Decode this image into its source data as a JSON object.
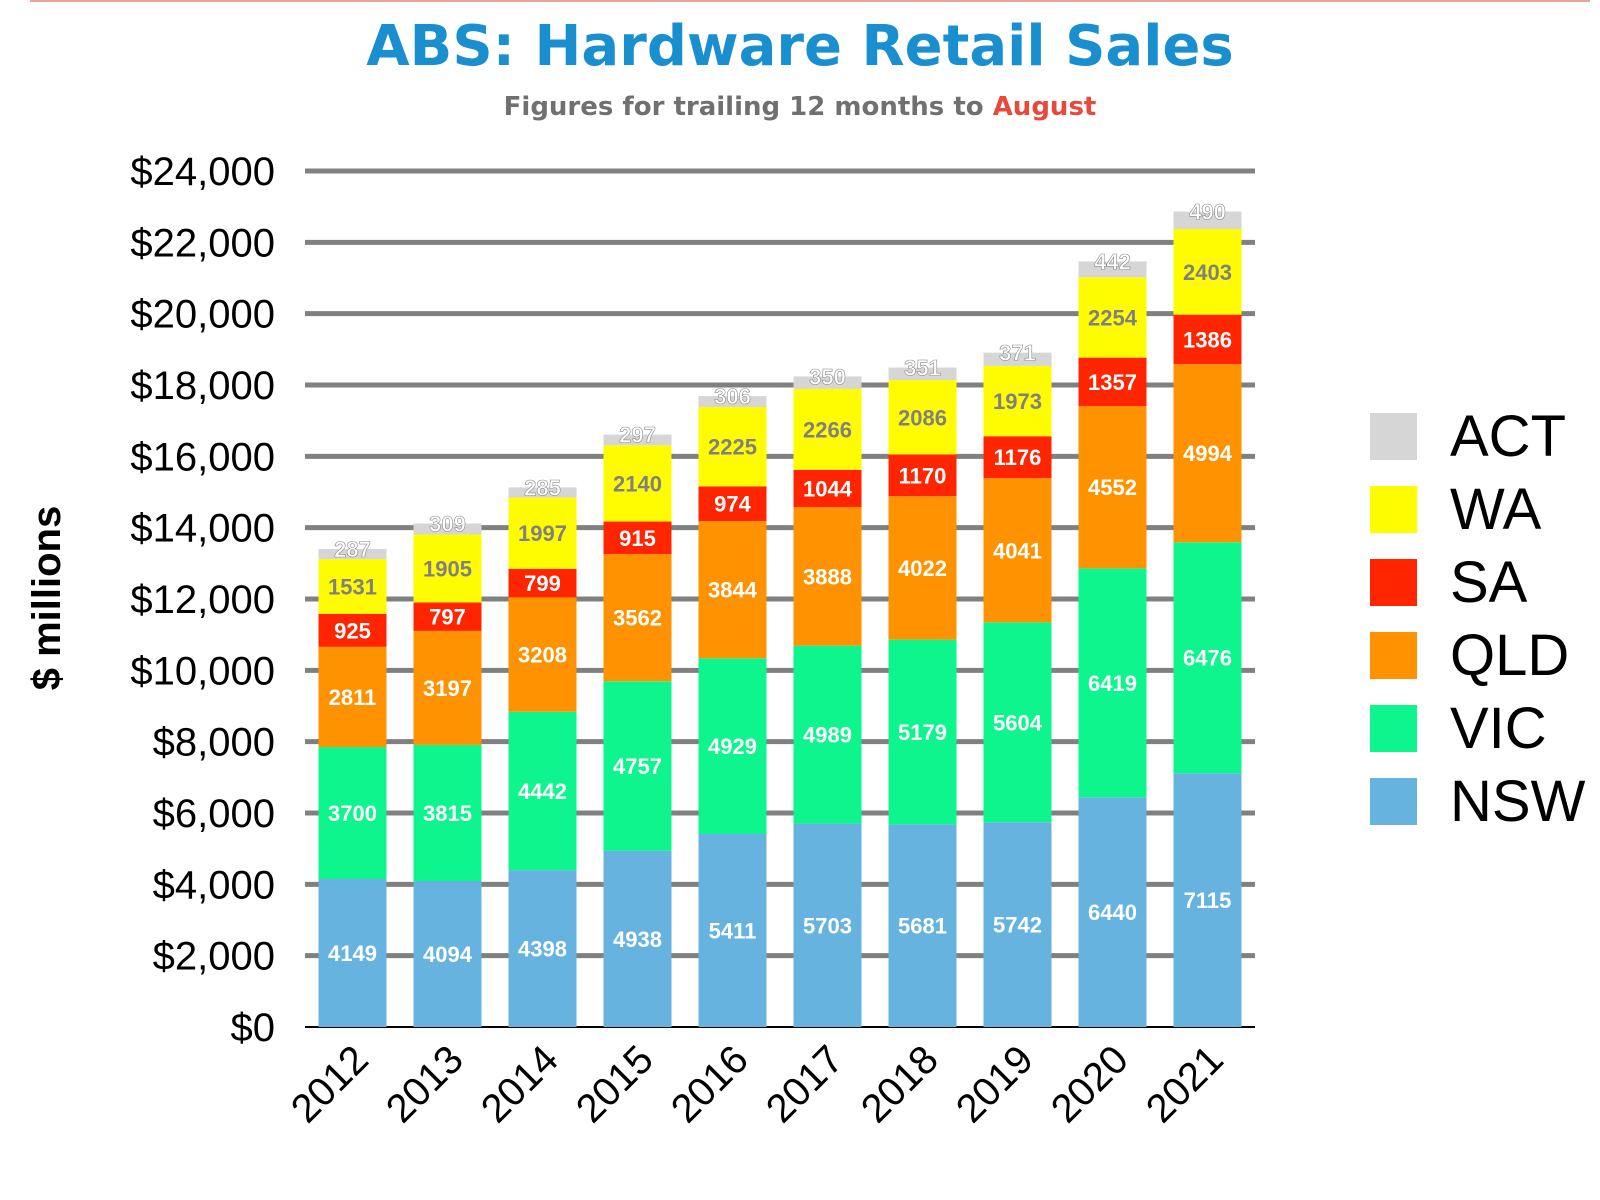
{
  "header": {
    "title": "ABS: Hardware Retail Sales",
    "subtitle_prefix": "Figures for trailing 12 months to ",
    "subtitle_highlight": "August"
  },
  "colors": {
    "title": "#1a8fd0",
    "subtitle": "#707070",
    "highlight": "#e8493a",
    "grid": "#808080"
  },
  "chart_data": {
    "type": "bar",
    "stacked": true,
    "title": "ABS: Hardware Retail Sales",
    "subtitle": "Figures for trailing 12 months to August",
    "xlabel": "",
    "ylabel": "$ millions",
    "ylim": [
      0,
      24000
    ],
    "yticks": [
      0,
      2000,
      4000,
      6000,
      8000,
      10000,
      12000,
      14000,
      16000,
      18000,
      20000,
      22000,
      24000
    ],
    "ytick_labels": [
      "$0",
      "$2,000",
      "$4,000",
      "$6,000",
      "$8,000",
      "$10,000",
      "$12,000",
      "$14,000",
      "$16,000",
      "$18,000",
      "$20,000",
      "$22,000",
      "$24,000"
    ],
    "grid": true,
    "legend_position": "right",
    "categories": [
      "2012",
      "2013",
      "2014",
      "2015",
      "2016",
      "2017",
      "2018",
      "2019",
      "2020",
      "2021"
    ],
    "series": [
      {
        "name": "NSW",
        "color": "#66b3e0",
        "label_color": "#ffffff",
        "values": [
          4149,
          4094,
          4398,
          4938,
          5411,
          5703,
          5681,
          5742,
          6440,
          7115
        ]
      },
      {
        "name": "VIC",
        "color": "#0ef58e",
        "label_color": "#ffffff",
        "values": [
          3700,
          3815,
          4442,
          4757,
          4929,
          4989,
          5179,
          5604,
          6419,
          6476
        ]
      },
      {
        "name": "QLD",
        "color": "#ff9200",
        "label_color": "#ffffff",
        "values": [
          2811,
          3197,
          3208,
          3562,
          3844,
          3888,
          4022,
          4041,
          4552,
          4994
        ]
      },
      {
        "name": "SA",
        "color": "#ff2500",
        "label_color": "#ffffff",
        "values": [
          925,
          797,
          799,
          915,
          974,
          1044,
          1170,
          1176,
          1357,
          1386
        ]
      },
      {
        "name": "WA",
        "color": "#fffb00",
        "label_color": "#808080",
        "values": [
          1531,
          1905,
          1997,
          2140,
          2225,
          2266,
          2086,
          1973,
          2254,
          2403
        ]
      },
      {
        "name": "ACT",
        "color": "#d6d6d6",
        "label_color": "#ffffff",
        "values": [
          287,
          309,
          285,
          297,
          306,
          350,
          351,
          371,
          442,
          490
        ]
      }
    ]
  }
}
